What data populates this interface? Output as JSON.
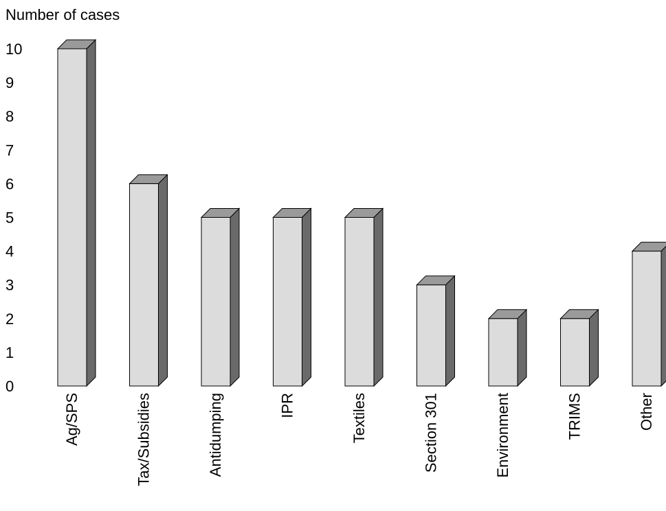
{
  "chart_data": {
    "type": "bar",
    "title": "",
    "xlabel": "",
    "ylabel": "Number of cases",
    "ylim": [
      0,
      10
    ],
    "yticks": [
      0,
      1,
      2,
      3,
      4,
      5,
      6,
      7,
      8,
      9,
      10
    ],
    "grid": false,
    "legend": "none",
    "bar_style": "3d",
    "colors": {
      "face": "#dcdcdc",
      "top": "#9a9a9a",
      "side": "#6a6a6a",
      "stroke": "#000000"
    },
    "categories": [
      "Ag/SPS",
      "Tax/Subsidies",
      "Antidumping",
      "IPR",
      "Textiles",
      "Section 301",
      "Environment",
      "TRIMS",
      "Other"
    ],
    "values": [
      10,
      6,
      5,
      5,
      5,
      3,
      2,
      2,
      4
    ]
  }
}
